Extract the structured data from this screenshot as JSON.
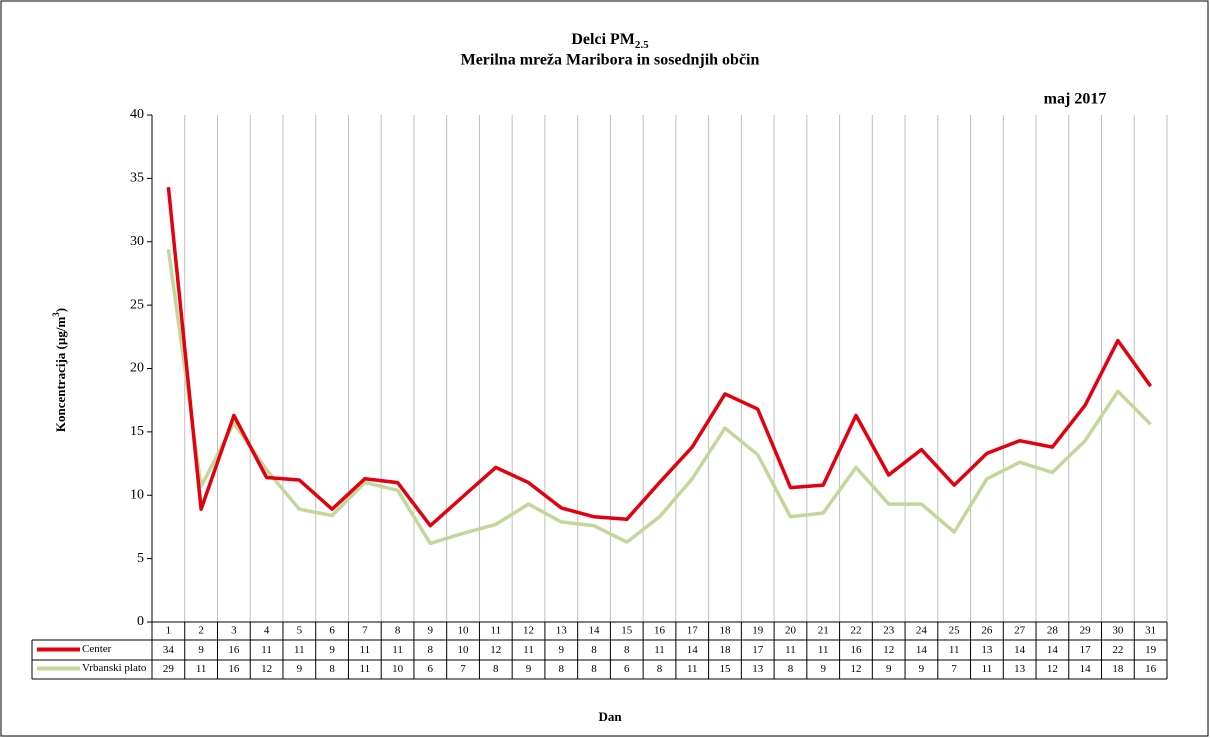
{
  "chart_data": {
    "type": "line",
    "title": [
      "Delci PM",
      "2.5"
    ],
    "subtitle": "Merilna mreža Maribora in sosednjih občin",
    "period": "maj 2017",
    "ylabel": [
      "Koncentracija  (µg/m",
      "3",
      ")"
    ],
    "xlabel": "Dan",
    "categories": [
      1,
      2,
      3,
      4,
      5,
      6,
      7,
      8,
      9,
      10,
      11,
      12,
      13,
      14,
      15,
      16,
      17,
      18,
      19,
      20,
      21,
      22,
      23,
      24,
      25,
      26,
      27,
      28,
      29,
      30,
      31
    ],
    "series": [
      {
        "name": "Center",
        "color": "#e3000f",
        "values": [
          34.3,
          8.9,
          16.3,
          11.4,
          11.2,
          8.9,
          11.3,
          11.0,
          7.6,
          9.9,
          12.2,
          11.0,
          9.0,
          8.3,
          8.1,
          11.0,
          13.8,
          18.0,
          16.8,
          10.6,
          10.8,
          16.3,
          11.6,
          13.6,
          10.8,
          13.3,
          14.3,
          13.8,
          17.1,
          22.2,
          18.6
        ],
        "value_labels": [
          "34",
          "9",
          "16",
          "11",
          "11",
          "9",
          "11",
          "11",
          "8",
          "10",
          "12",
          "11",
          "9",
          "8",
          "8",
          "11",
          "14",
          "18",
          "17",
          "11",
          "11",
          "16",
          "12",
          "14",
          "11",
          "13",
          "14",
          "14",
          "17",
          "22",
          "19"
        ]
      },
      {
        "name": "Vrbanski plato",
        "color": "#c4d79b",
        "values": [
          29.4,
          10.7,
          15.7,
          12.0,
          8.9,
          8.4,
          11.0,
          10.4,
          6.2,
          7.0,
          7.7,
          9.3,
          7.9,
          7.6,
          6.3,
          8.3,
          11.3,
          15.3,
          13.2,
          8.3,
          8.6,
          12.2,
          9.3,
          9.3,
          7.1,
          11.3,
          12.6,
          11.8,
          14.3,
          18.2,
          15.6
        ],
        "value_labels": [
          "29",
          "11",
          "16",
          "12",
          "9",
          "8",
          "11",
          "10",
          "6",
          "7",
          "8",
          "9",
          "8",
          "8",
          "6",
          "8",
          "11",
          "15",
          "13",
          "8",
          "9",
          "12",
          "9",
          "9",
          "7",
          "11",
          "13",
          "12",
          "14",
          "18",
          "16"
        ]
      }
    ],
    "ylim": [
      0,
      40
    ],
    "yticks": [
      0,
      5,
      10,
      15,
      20,
      25,
      30,
      35,
      40
    ],
    "grid": "x"
  }
}
